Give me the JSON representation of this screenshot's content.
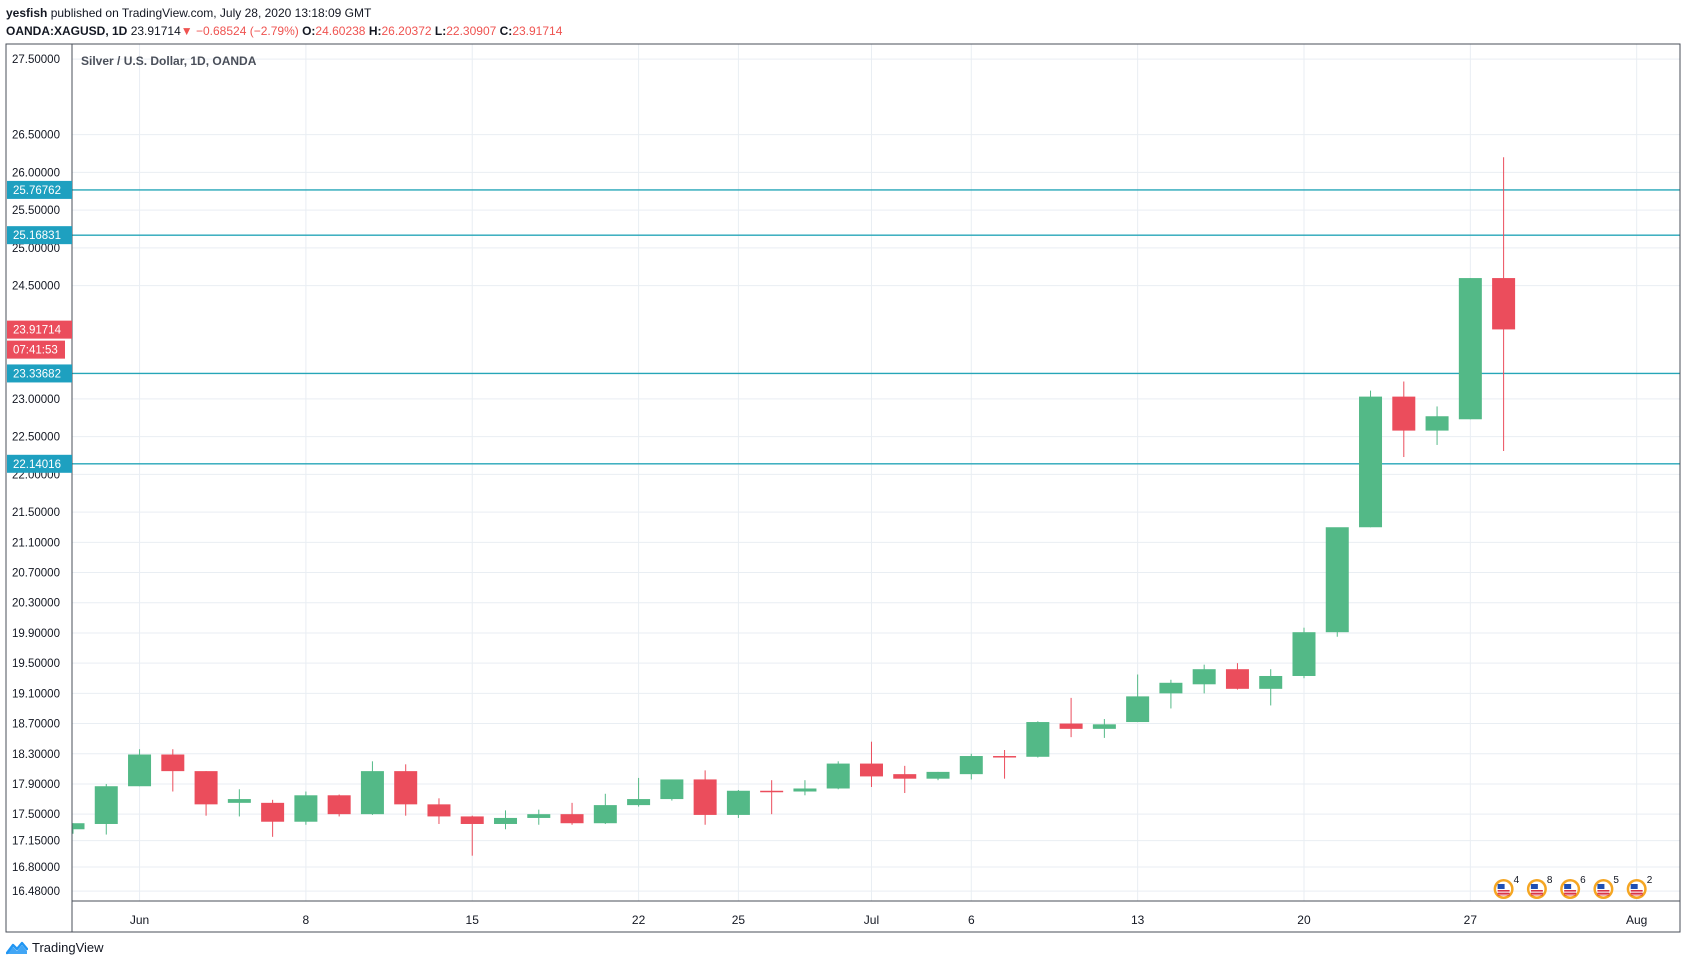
{
  "header": {
    "user": "yesfish",
    "published": "published on TradingView.com, July 28, 2020 13:18:09 GMT",
    "symbol": "OANDA:XAGUSD, 1D",
    "last": "23.91714",
    "arrow": "▼",
    "change": "−0.68524 (−2.79%)",
    "o_label": "O:",
    "o_value": "24.60238",
    "h_label": "H:",
    "h_value": "26.20372",
    "l_label": "L:",
    "l_value": "22.30907",
    "c_label": "C:",
    "c_value": "23.91714"
  },
  "footer": {
    "brand": "TradingView"
  },
  "colors": {
    "up": "#53b987",
    "down": "#eb4d5c",
    "level": "#26a6b8",
    "grid": "#e9eef3",
    "axis": "#131722"
  },
  "chart_data": {
    "type": "candlestick",
    "title": "Silver / U.S. Dollar, 1D, OANDA",
    "ylim": [
      16.35,
      27.7
    ],
    "y_ticks": [
      "27.50000",
      "26.50000",
      "26.00000",
      "25.50000",
      "25.00000",
      "24.50000",
      "23.00000",
      "22.50000",
      "22.00000",
      "21.50000",
      "21.10000",
      "20.70000",
      "20.30000",
      "19.90000",
      "19.50000",
      "19.10000",
      "18.70000",
      "18.30000",
      "17.90000",
      "17.50000",
      "17.15000",
      "16.80000",
      "16.48000"
    ],
    "x_ticks": [
      {
        "label": "Jun",
        "index": 2
      },
      {
        "label": "8",
        "index": 7
      },
      {
        "label": "15",
        "index": 12
      },
      {
        "label": "22",
        "index": 17
      },
      {
        "label": "25",
        "index": 20
      },
      {
        "label": "Jul",
        "index": 24
      },
      {
        "label": "6",
        "index": 27
      },
      {
        "label": "13",
        "index": 32
      },
      {
        "label": "20",
        "index": 37
      },
      {
        "label": "27",
        "index": 42
      },
      {
        "label": "Aug",
        "index": 47
      }
    ],
    "candles": [
      {
        "o": 17.3,
        "h": 17.38,
        "l": 17.24,
        "c": 17.38
      },
      {
        "o": 17.37,
        "h": 17.9,
        "l": 17.23,
        "c": 17.87
      },
      {
        "o": 17.87,
        "h": 18.36,
        "l": 17.87,
        "c": 18.29
      },
      {
        "o": 18.29,
        "h": 18.36,
        "l": 17.8,
        "c": 18.07
      },
      {
        "o": 18.07,
        "h": 18.07,
        "l": 17.48,
        "c": 17.63
      },
      {
        "o": 17.65,
        "h": 17.83,
        "l": 17.47,
        "c": 17.7
      },
      {
        "o": 17.65,
        "h": 17.69,
        "l": 17.2,
        "c": 17.4
      },
      {
        "o": 17.4,
        "h": 17.8,
        "l": 17.36,
        "c": 17.75
      },
      {
        "o": 17.75,
        "h": 17.76,
        "l": 17.47,
        "c": 17.5
      },
      {
        "o": 17.5,
        "h": 18.2,
        "l": 17.49,
        "c": 18.07
      },
      {
        "o": 18.07,
        "h": 18.16,
        "l": 17.48,
        "c": 17.63
      },
      {
        "o": 17.63,
        "h": 17.71,
        "l": 17.37,
        "c": 17.47
      },
      {
        "o": 17.47,
        "h": 17.48,
        "l": 16.95,
        "c": 17.37
      },
      {
        "o": 17.37,
        "h": 17.55,
        "l": 17.3,
        "c": 17.45
      },
      {
        "o": 17.45,
        "h": 17.56,
        "l": 17.36,
        "c": 17.5
      },
      {
        "o": 17.5,
        "h": 17.65,
        "l": 17.36,
        "c": 17.38
      },
      {
        "o": 17.38,
        "h": 17.77,
        "l": 17.37,
        "c": 17.62
      },
      {
        "o": 17.62,
        "h": 17.98,
        "l": 17.6,
        "c": 17.7
      },
      {
        "o": 17.7,
        "h": 17.95,
        "l": 17.68,
        "c": 17.96
      },
      {
        "o": 17.96,
        "h": 18.08,
        "l": 17.36,
        "c": 17.49
      },
      {
        "o": 17.49,
        "h": 17.82,
        "l": 17.45,
        "c": 17.81
      },
      {
        "o": 17.81,
        "h": 17.95,
        "l": 17.5,
        "c": 17.8
      },
      {
        "o": 17.8,
        "h": 17.95,
        "l": 17.75,
        "c": 17.84
      },
      {
        "o": 17.84,
        "h": 18.2,
        "l": 17.83,
        "c": 18.17
      },
      {
        "o": 18.17,
        "h": 18.46,
        "l": 17.86,
        "c": 18.0
      },
      {
        "o": 18.03,
        "h": 18.14,
        "l": 17.78,
        "c": 17.97
      },
      {
        "o": 17.97,
        "h": 18.06,
        "l": 17.95,
        "c": 18.06
      },
      {
        "o": 18.03,
        "h": 18.3,
        "l": 17.96,
        "c": 18.27
      },
      {
        "o": 18.27,
        "h": 18.35,
        "l": 17.97,
        "c": 18.26
      },
      {
        "o": 18.26,
        "h": 18.73,
        "l": 18.25,
        "c": 18.72
      },
      {
        "o": 18.7,
        "h": 19.04,
        "l": 18.52,
        "c": 18.63
      },
      {
        "o": 18.63,
        "h": 18.76,
        "l": 18.51,
        "c": 18.69
      },
      {
        "o": 18.72,
        "h": 19.35,
        "l": 18.72,
        "c": 19.06
      },
      {
        "o": 19.1,
        "h": 19.28,
        "l": 18.9,
        "c": 19.24
      },
      {
        "o": 19.22,
        "h": 19.48,
        "l": 19.1,
        "c": 19.42
      },
      {
        "o": 19.42,
        "h": 19.5,
        "l": 19.15,
        "c": 19.16
      },
      {
        "o": 19.16,
        "h": 19.42,
        "l": 18.94,
        "c": 19.33
      },
      {
        "o": 19.33,
        "h": 19.97,
        "l": 19.3,
        "c": 19.91
      },
      {
        "o": 19.91,
        "h": 21.29,
        "l": 19.85,
        "c": 21.3
      },
      {
        "o": 21.3,
        "h": 23.11,
        "l": 21.3,
        "c": 23.03
      },
      {
        "o": 23.03,
        "h": 23.23,
        "l": 22.23,
        "c": 22.58
      },
      {
        "o": 22.58,
        "h": 22.9,
        "l": 22.39,
        "c": 22.77
      },
      {
        "o": 22.73,
        "h": 24.6,
        "l": 22.73,
        "c": 24.6
      },
      {
        "o": 24.6,
        "h": 26.2,
        "l": 22.31,
        "c": 23.92
      }
    ],
    "price_levels": [
      {
        "value": 25.76762,
        "label": "25.76762"
      },
      {
        "value": 25.16831,
        "label": "25.16831"
      },
      {
        "value": 23.33682,
        "label": "23.33682"
      },
      {
        "value": 22.14016,
        "label": "22.14016"
      }
    ],
    "last_price": {
      "value": 23.91714,
      "label": "23.91714",
      "countdown": "07:41:53"
    },
    "events": [
      {
        "count": "4",
        "index": 43
      },
      {
        "count": "8",
        "index": 44
      },
      {
        "count": "6",
        "index": 45
      },
      {
        "count": "5",
        "index": 46
      },
      {
        "count": "2",
        "index": 47
      }
    ]
  }
}
